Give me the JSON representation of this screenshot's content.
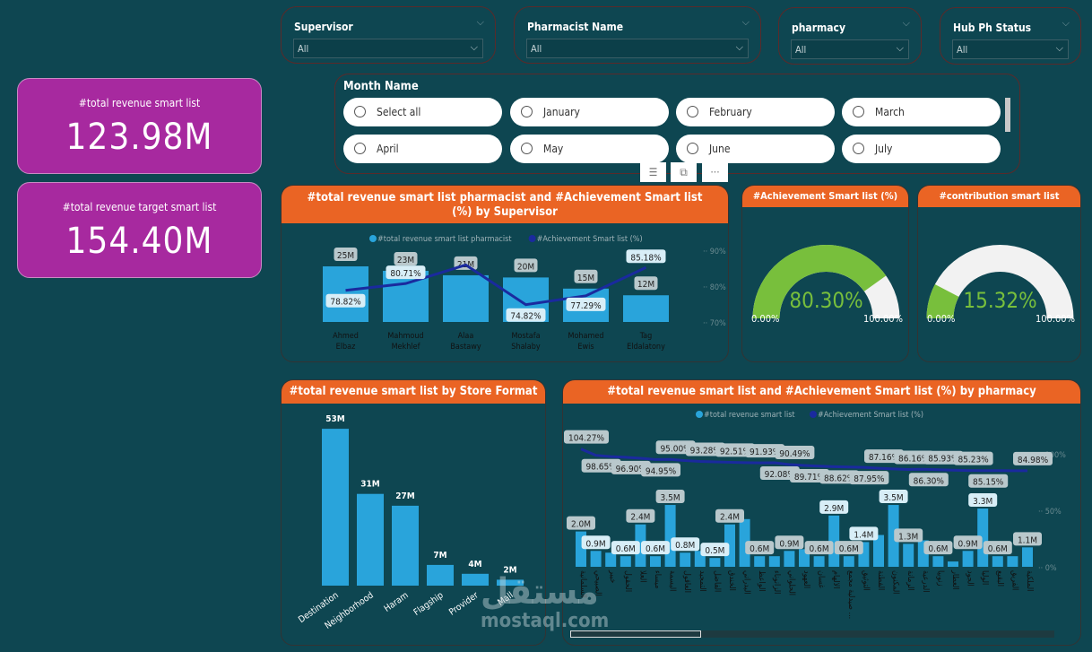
{
  "filters": [
    {
      "label": "Supervisor",
      "value": "All"
    },
    {
      "label": "Pharmacist Name",
      "value": "All"
    },
    {
      "label": "pharmacy",
      "value": "All"
    },
    {
      "label": "Hub Ph Status",
      "value": "All"
    }
  ],
  "month_slicer": {
    "title": "Month Name",
    "options": [
      "Select all",
      "January",
      "February",
      "March",
      "April",
      "May",
      "June",
      "July"
    ]
  },
  "kpis": [
    {
      "title": "#total revenue smart list",
      "value": "123.98M"
    },
    {
      "title": "#total revenue target smart list",
      "value": "154.40M"
    }
  ],
  "colors": {
    "bar": "#29a4db",
    "line": "#1a2a9e",
    "header": "#ea6424",
    "kpi": "#a7299f",
    "gauge_fill": "#78bf3c",
    "gauge_bg": "#f2f2f2"
  },
  "chart_data": [
    {
      "type": "bar+line",
      "title": "#total revenue smart list pharmacist and #Achievement Smart list (%) by Supervisor",
      "legend": [
        "#total revenue smart list pharmacist",
        "#Achievement Smart list (%)"
      ],
      "categories": [
        "Ahmed Elbaz",
        "Mahmoud Mekhlef",
        "Alaa Bastawy",
        "Mostafa Shalaby",
        "Mohamed Ewis",
        "Tag Eldalatony"
      ],
      "bar_values": [
        25,
        23,
        21,
        20,
        15,
        12
      ],
      "bar_labels": [
        "25M",
        "23M",
        "21M",
        "20M",
        "15M",
        "12M"
      ],
      "line_values": [
        78.82,
        80.71,
        85.9,
        74.82,
        77.29,
        85.18
      ],
      "line_labels": [
        "78.82%",
        "80.71%",
        "",
        "74.82%",
        "77.29%",
        "85.18%"
      ],
      "y2_ticks": [
        "70%",
        "80%",
        "90%"
      ],
      "y2lim": [
        70,
        90
      ]
    },
    {
      "type": "gauge",
      "title": "#Achievement Smart list (%)",
      "value": 80.3,
      "value_label": "80.30%",
      "min_label": "0.00%",
      "max_label": "100.00%"
    },
    {
      "type": "gauge",
      "title": "#contribution smart list",
      "value": 15.32,
      "value_label": "15.32%",
      "min_label": "0.00%",
      "max_label": "100.00%"
    },
    {
      "type": "bar",
      "title": "#total revenue smart list by Store Format",
      "categories": [
        "Destination",
        "Neighborhood",
        "Haram",
        "Flagship",
        "Provider",
        "Mall"
      ],
      "values": [
        53,
        31,
        27,
        7,
        4,
        2
      ],
      "labels": [
        "53M",
        "31M",
        "27M",
        "7M",
        "4M",
        "2M"
      ]
    },
    {
      "type": "bar+line",
      "title": "#total revenue smart list and #Achievement Smart list (%) by pharmacy",
      "legend": [
        "#total revenue smart list",
        "#Achievement Smart list (%)"
      ],
      "categories": [
        "السلمانية",
        "الصبيحي",
        "خيبر",
        "الحقول",
        "العلا",
        "ميساء",
        "البسمة",
        "العاقول",
        "التمجيد",
        "الفاضل",
        "الخندق",
        "البدراني",
        "الواعظ",
        "الزانوناء",
        "الحلواني",
        "العهود",
        "غسان",
        "الالهام",
        "صيدلية مجمع ...",
        "التوثيق",
        "الفطنة",
        "المكنون",
        "الرمانة",
        "الدرعية",
        "زنوبيا",
        "العطار",
        "الجود",
        "الوليا",
        "البقيع",
        "الفريق",
        "الملكية"
      ],
      "bar_values": [
        2.0,
        0.9,
        0.8,
        0.6,
        2.4,
        0.6,
        3.5,
        0.8,
        0.9,
        0.5,
        2.4,
        2.7,
        0.6,
        0.6,
        0.9,
        1.0,
        0.6,
        2.9,
        0.6,
        1.4,
        1.8,
        3.5,
        1.3,
        1.5,
        0.6,
        0.3,
        0.9,
        3.3,
        0.6,
        0.6,
        1.1
      ],
      "bar_labels": [
        "2.0M",
        "0.9M",
        "",
        "0.6M",
        "2.4M",
        "0.6M",
        "3.5M",
        "0.8M",
        "",
        "0.5M",
        "2.4M",
        "",
        "0.6M",
        "",
        "0.9M",
        "",
        "0.6M",
        "2.9M",
        "0.6M",
        "1.4M",
        "",
        "3.5M",
        "1.3M",
        "",
        "0.6M",
        "",
        "0.9M",
        "3.3M",
        "0.6M",
        "",
        "1.1M"
      ],
      "line_values": [
        104.27,
        98.65,
        97.5,
        96.9,
        96.0,
        94.95,
        95.0,
        94.0,
        93.28,
        92.9,
        92.51,
        92.2,
        91.93,
        92.08,
        90.49,
        89.71,
        89.1,
        88.62,
        88.3,
        87.95,
        87.16,
        86.6,
        86.16,
        86.3,
        85.93,
        85.5,
        85.23,
        85.15,
        85.1,
        85.05,
        84.98
      ],
      "line_labels": [
        "104.27%",
        "98.65%",
        "",
        "96.90%",
        "",
        "94.95%",
        "95.00%",
        "",
        "93.28%",
        "",
        "92.51%",
        "",
        "91.93%",
        "92.08%",
        "90.49%",
        "89.71%",
        "",
        "88.62%",
        "",
        "87.95%",
        "87.16%",
        "",
        "86.16%",
        "86.30%",
        "85.93%",
        "",
        "85.23%",
        "85.15%",
        "",
        "",
        "84.98%"
      ],
      "y2_ticks": [
        "0%",
        "50%",
        "100%"
      ],
      "y2lim": [
        0,
        100
      ]
    }
  ],
  "watermark": {
    "arabic": "مستقل",
    "latin": "mostaql.com"
  }
}
